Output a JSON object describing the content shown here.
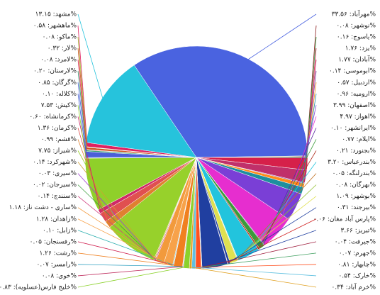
{
  "chart_data": {
    "type": "pie",
    "categories": [
      "مهرآباد: ۳۳.۵۶%",
      "نوشهر: ۰.۰۸%",
      "یاسوج: ۰.۱۶%",
      "یزد: ۱.۷۶%",
      "آبادان: ۱.۷۷%",
      "ابوموسی: ۰.۱۴%",
      "اردبیل: ۰.۵۷%",
      "ارومیه: ۰.۹۶%",
      "اصفهان: ۳.۹۹%",
      "اهواز: ۴.۹۷%",
      "ایرانشهر: ۰.۱۰%",
      "ایلام: ۰.۷۷%",
      "بجنورد: ۰.۲۱%",
      "بندرعباس: ۳.۲۰%",
      "بندرلنگه: ۰.۰۵%",
      "بهرگان: ۰.۰۸%",
      "بوشهر: ۱.۰۹%",
      "بیرجند: ۰.۳۱%",
      "پارس آباد مغان: ۰.۰۶%",
      "تبریز: ۳.۶۶%",
      "جیرفت: ۰.۰۴%",
      "جهرم: ۰.۰۷%",
      "چابهار: ۰.۸۱%",
      "خارک: ۰.۵۴%",
      "خرم آباد: ۰.۳۴%",
      "خلیج فارس(عسلویه): ۰.۸۳%",
      "خوی: ۰.۰۸%",
      "رامسر: ۰.۰۷%",
      "رشت: ۱.۲۶%",
      "رفسنجان: ۰.۰۵%",
      "زابل: ۰.۱۰%",
      "زاهدان: ۱.۲۸%",
      "ساری - دشت ناز: ۱.۱۸%",
      "سنندج: ۰.۱۴%",
      "سیرجان: ۰.۰۲%",
      "سیری: ۰.۰۳%",
      "شهرکرد: ۰.۱۴%",
      "شیراز: ۷.۷۵%",
      "قشم: ۰.۹۹%",
      "کرمان: ۱.۳۶%",
      "کرمانشاه: ۰.۶۰%",
      "کیش: ۷.۵۳%",
      "کلاله: ۰.۱۰%",
      "گرگان: ۰.۸۵%",
      "لارستان: ۰.۲۰%",
      "لامرد: ۰.۰۸%",
      "لار: ۰.۳۲%",
      "ماکو: ۰.۰۸%",
      "ماهشهر: ۰.۵۸%",
      "مشهد: ۱۳.۱۵%"
    ],
    "values": [
      33.56,
      0.08,
      0.16,
      1.76,
      1.77,
      0.14,
      0.57,
      0.96,
      3.99,
      4.97,
      0.1,
      0.77,
      0.21,
      3.2,
      0.05,
      0.08,
      1.09,
      0.31,
      0.06,
      3.66,
      0.04,
      0.07,
      0.81,
      0.54,
      0.34,
      0.83,
      0.08,
      0.07,
      1.26,
      0.05,
      0.1,
      1.28,
      1.18,
      0.14,
      0.02,
      0.03,
      0.14,
      7.75,
      0.99,
      1.36,
      0.6,
      7.53,
      0.1,
      0.85,
      0.2,
      0.08,
      0.32,
      0.08,
      0.58,
      13.15
    ],
    "colors": [
      "#4a63e0",
      "#8b1a1a",
      "#2f9e44",
      "#d6204a",
      "#c0306a",
      "#7b3fa0",
      "#ff8c1a",
      "#1e8f9e",
      "#7a3fd6",
      "#e62ecf",
      "#5a2ea0",
      "#3a9a3a",
      "#b03020",
      "#22c4dd",
      "#c07020",
      "#90c030",
      "#e0e050",
      "#2040a0",
      "#d02020",
      "#203fa0",
      "#a02040",
      "#40a060",
      "#ff5020",
      "#60c0e0",
      "#e0a020",
      "#8bd12a",
      "#c03060",
      "#30a0c0",
      "#f08020",
      "#d02050",
      "#30b0b0",
      "#f7a24a",
      "#f29a3c",
      "#d04080",
      "#40a040",
      "#a040d0",
      "#d0a030",
      "#97d12b",
      "#e08030",
      "#e05050",
      "#d02868",
      "#8fd02a",
      "#4060d0",
      "#4a5fd8",
      "#30a070",
      "#e03060",
      "#d05020",
      "#a0c030",
      "#e02060",
      "#26c3dc"
    ]
  }
}
